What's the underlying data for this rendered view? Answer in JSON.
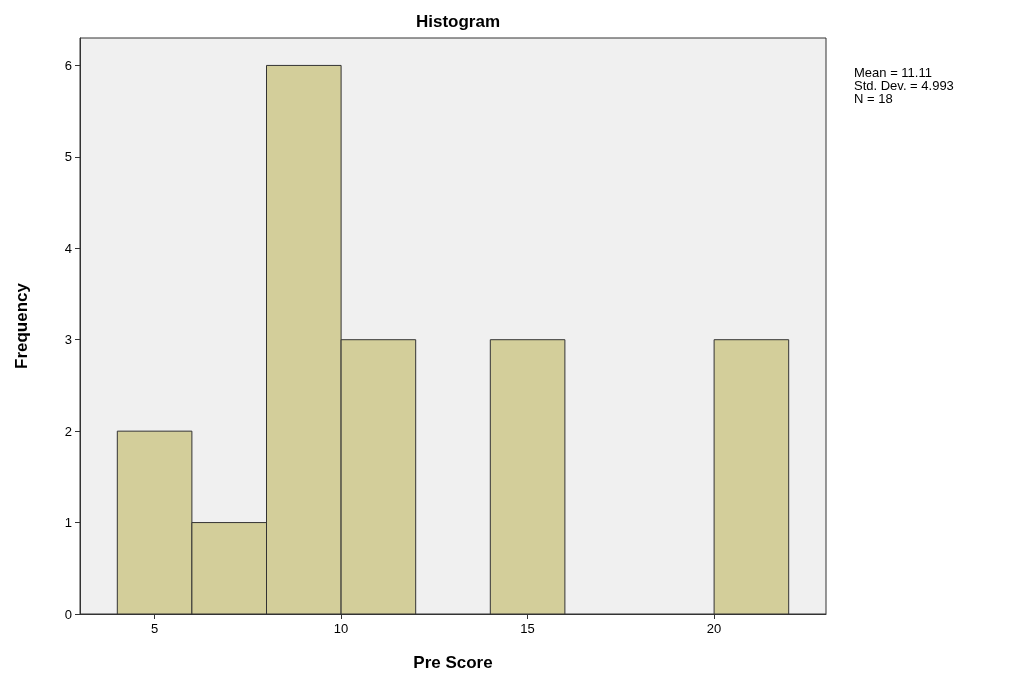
{
  "chart_data": {
    "type": "histogram",
    "title": "Histogram",
    "xlabel": "Pre Score",
    "ylabel": "Frequency",
    "bins": [
      4,
      6,
      8,
      10,
      12,
      14,
      16,
      18,
      20,
      22
    ],
    "values": [
      2,
      1,
      6,
      3,
      0,
      3,
      0,
      0,
      3
    ],
    "color": "#d3ce9a",
    "xlim": [
      3,
      23
    ],
    "xticks": [
      5,
      10,
      15,
      20
    ],
    "ylim": [
      0,
      6.3
    ],
    "yticks": [
      0,
      1,
      2,
      3,
      4,
      5,
      6
    ],
    "grid": false,
    "annotations": [
      "Mean = 11.11",
      "Std. Dev. = 4.993",
      "N = 18"
    ]
  }
}
